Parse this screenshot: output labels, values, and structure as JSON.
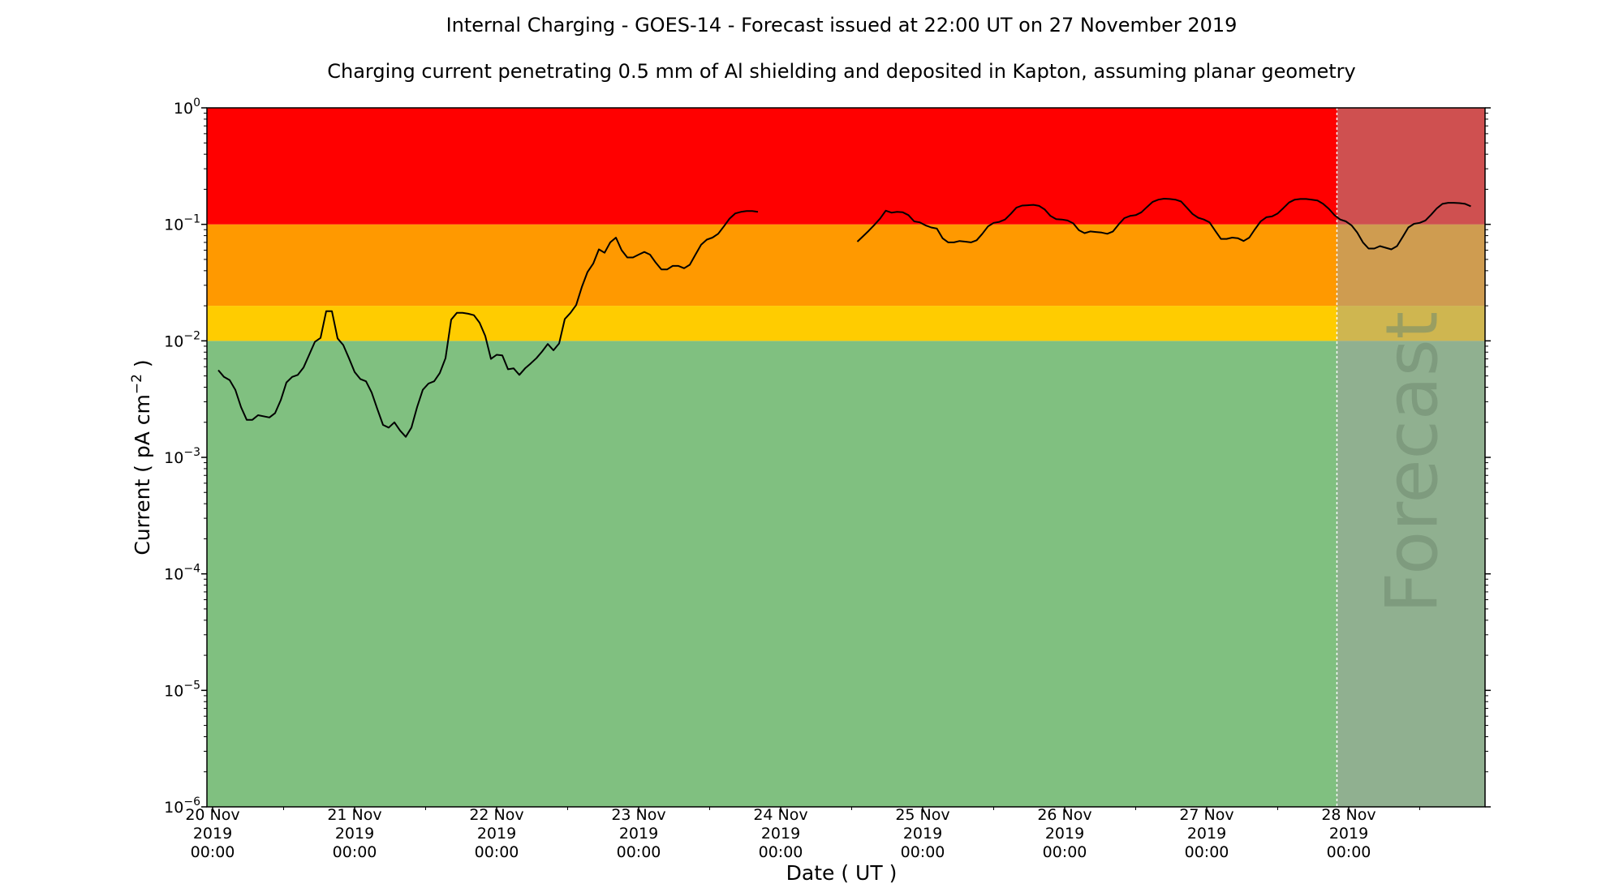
{
  "chart_data": {
    "type": "line",
    "title": "Internal Charging - GOES-14 - Forecast issued at 22:00 UT on 27 November 2019",
    "subtitle": "Charging current penetrating 0.5 mm of Al shielding and deposited in Kapton, assuming planar geometry",
    "xlabel": "Date ( UT )",
    "ylabel_main": "Current ( pA cm",
    "ylabel_sup": "−2",
    "ylabel_end": " )",
    "yscale": "log",
    "ylim": [
      1e-06,
      1
    ],
    "xlim_days": [
      19.96,
      28.96
    ],
    "x_ticks": [
      {
        "day": 20,
        "line1": "20 Nov",
        "line2": "2019",
        "line3": "00:00"
      },
      {
        "day": 21,
        "line1": "21 Nov",
        "line2": "2019",
        "line3": "00:00"
      },
      {
        "day": 22,
        "line1": "22 Nov",
        "line2": "2019",
        "line3": "00:00"
      },
      {
        "day": 23,
        "line1": "23 Nov",
        "line2": "2019",
        "line3": "00:00"
      },
      {
        "day": 24,
        "line1": "24 Nov",
        "line2": "2019",
        "line3": "00:00"
      },
      {
        "day": 25,
        "line1": "25 Nov",
        "line2": "2019",
        "line3": "00:00"
      },
      {
        "day": 26,
        "line1": "26 Nov",
        "line2": "2019",
        "line3": "00:00"
      },
      {
        "day": 27,
        "line1": "27 Nov",
        "line2": "2019",
        "line3": "00:00"
      },
      {
        "day": 28,
        "line1": "28 Nov",
        "line2": "2019",
        "line3": "00:00"
      }
    ],
    "y_ticks": [
      {
        "value": 1e-06,
        "base": "10",
        "exp": "−6"
      },
      {
        "value": 1e-05,
        "base": "10",
        "exp": "−5"
      },
      {
        "value": 0.0001,
        "base": "10",
        "exp": "−4"
      },
      {
        "value": 0.001,
        "base": "10",
        "exp": "−3"
      },
      {
        "value": 0.01,
        "base": "10",
        "exp": "−2"
      },
      {
        "value": 0.1,
        "base": "10",
        "exp": "−1"
      },
      {
        "value": 1,
        "base": "10",
        "exp": "0"
      }
    ],
    "bands": [
      {
        "from": 1e-06,
        "to": 0.01,
        "color": "#80c080"
      },
      {
        "from": 0.01,
        "to": 0.02,
        "color": "#ffcc00"
      },
      {
        "from": 0.02,
        "to": 0.1,
        "color": "#ff9900"
      },
      {
        "from": 0.1,
        "to": 1,
        "color": "#ff0000"
      }
    ],
    "forecast": {
      "start_day": 27.917,
      "label": "Forecast",
      "overlay_color": "#a0a0a0"
    },
    "series": [
      {
        "color": "#000000",
        "segments": [
          [
            [
              20.04,
              0.0056
            ],
            [
              20.08,
              0.0049
            ],
            [
              20.12,
              0.0046
            ],
            [
              20.16,
              0.0038
            ],
            [
              20.2,
              0.0027
            ],
            [
              20.24,
              0.0021
            ],
            [
              20.28,
              0.0021
            ],
            [
              20.32,
              0.0023
            ],
            [
              20.4,
              0.0022
            ],
            [
              20.44,
              0.0024
            ],
            [
              20.48,
              0.0031
            ],
            [
              20.52,
              0.0044
            ],
            [
              20.56,
              0.0049
            ],
            [
              20.6,
              0.0051
            ],
            [
              20.64,
              0.0059
            ],
            [
              20.68,
              0.0076
            ],
            [
              20.72,
              0.0098
            ],
            [
              20.76,
              0.0106
            ],
            [
              20.8,
              0.018
            ],
            [
              20.84,
              0.018
            ],
            [
              20.88,
              0.0105
            ],
            [
              20.92,
              0.0092
            ],
            [
              20.96,
              0.0071
            ],
            [
              21.0,
              0.0054
            ],
            [
              21.04,
              0.0047
            ],
            [
              21.08,
              0.0045
            ],
            [
              21.12,
              0.0036
            ],
            [
              21.16,
              0.0026
            ],
            [
              21.2,
              0.0019
            ],
            [
              21.24,
              0.0018
            ],
            [
              21.28,
              0.002
            ],
            [
              21.32,
              0.0017
            ],
            [
              21.36,
              0.0015
            ],
            [
              21.4,
              0.0018
            ],
            [
              21.44,
              0.0027
            ],
            [
              21.48,
              0.0038
            ],
            [
              21.52,
              0.0043
            ],
            [
              21.56,
              0.0045
            ],
            [
              21.6,
              0.0053
            ],
            [
              21.64,
              0.0071
            ],
            [
              21.68,
              0.0152
            ],
            [
              21.72,
              0.0174
            ],
            [
              21.76,
              0.0174
            ],
            [
              21.8,
              0.0171
            ],
            [
              21.84,
              0.0166
            ],
            [
              21.88,
              0.0143
            ],
            [
              21.92,
              0.011
            ],
            [
              21.96,
              0.007
            ],
            [
              22.0,
              0.0076
            ],
            [
              22.04,
              0.0075
            ],
            [
              22.08,
              0.0057
            ],
            [
              22.12,
              0.0058
            ],
            [
              22.16,
              0.0051
            ],
            [
              22.2,
              0.0058
            ],
            [
              22.24,
              0.0064
            ],
            [
              22.28,
              0.0071
            ],
            [
              22.32,
              0.0081
            ],
            [
              22.36,
              0.0094
            ],
            [
              22.4,
              0.0083
            ],
            [
              22.44,
              0.0095
            ],
            [
              22.48,
              0.0154
            ],
            [
              22.52,
              0.0174
            ],
            [
              22.56,
              0.0203
            ],
            [
              22.6,
              0.029
            ],
            [
              22.64,
              0.039
            ],
            [
              22.68,
              0.046
            ],
            [
              22.72,
              0.061
            ],
            [
              22.76,
              0.057
            ],
            [
              22.8,
              0.07
            ],
            [
              22.84,
              0.077
            ],
            [
              22.88,
              0.06
            ],
            [
              22.92,
              0.052
            ],
            [
              22.96,
              0.052
            ],
            [
              23.0,
              0.055
            ],
            [
              23.04,
              0.058
            ],
            [
              23.08,
              0.055
            ],
            [
              23.12,
              0.047
            ],
            [
              23.16,
              0.041
            ],
            [
              23.2,
              0.041
            ],
            [
              23.24,
              0.044
            ],
            [
              23.28,
              0.044
            ],
            [
              23.32,
              0.042
            ],
            [
              23.36,
              0.045
            ],
            [
              23.4,
              0.055
            ],
            [
              23.44,
              0.067
            ],
            [
              23.48,
              0.074
            ],
            [
              23.52,
              0.077
            ],
            [
              23.56,
              0.083
            ],
            [
              23.6,
              0.096
            ],
            [
              23.64,
              0.112
            ],
            [
              23.68,
              0.124
            ],
            [
              23.72,
              0.128
            ],
            [
              23.76,
              0.13
            ],
            [
              23.8,
              0.13
            ],
            [
              23.84,
              0.128
            ]
          ],
          [
            [
              24.54,
              0.071
            ],
            [
              24.58,
              0.079
            ],
            [
              24.62,
              0.088
            ],
            [
              24.66,
              0.099
            ],
            [
              24.7,
              0.112
            ],
            [
              24.74,
              0.131
            ],
            [
              24.78,
              0.126
            ],
            [
              24.82,
              0.128
            ],
            [
              24.86,
              0.127
            ],
            [
              24.9,
              0.12
            ],
            [
              24.94,
              0.106
            ],
            [
              24.98,
              0.104
            ],
            [
              25.02,
              0.098
            ],
            [
              25.06,
              0.094
            ],
            [
              25.1,
              0.092
            ],
            [
              25.14,
              0.076
            ],
            [
              25.18,
              0.07
            ],
            [
              25.22,
              0.07
            ],
            [
              25.26,
              0.072
            ],
            [
              25.3,
              0.071
            ],
            [
              25.34,
              0.07
            ],
            [
              25.38,
              0.073
            ],
            [
              25.42,
              0.083
            ],
            [
              25.46,
              0.096
            ],
            [
              25.5,
              0.103
            ],
            [
              25.54,
              0.105
            ],
            [
              25.58,
              0.11
            ],
            [
              25.62,
              0.123
            ],
            [
              25.66,
              0.139
            ],
            [
              25.7,
              0.145
            ],
            [
              25.74,
              0.146
            ],
            [
              25.78,
              0.147
            ],
            [
              25.82,
              0.144
            ],
            [
              25.86,
              0.134
            ],
            [
              25.9,
              0.118
            ],
            [
              25.94,
              0.111
            ],
            [
              25.98,
              0.11
            ],
            [
              26.02,
              0.108
            ],
            [
              26.06,
              0.102
            ],
            [
              26.1,
              0.089
            ],
            [
              26.14,
              0.084
            ],
            [
              26.18,
              0.087
            ],
            [
              26.22,
              0.086
            ],
            [
              26.26,
              0.085
            ],
            [
              26.3,
              0.083
            ],
            [
              26.34,
              0.087
            ],
            [
              26.38,
              0.1
            ],
            [
              26.42,
              0.113
            ],
            [
              26.46,
              0.118
            ],
            [
              26.5,
              0.12
            ],
            [
              26.54,
              0.127
            ],
            [
              26.58,
              0.141
            ],
            [
              26.62,
              0.156
            ],
            [
              26.66,
              0.163
            ],
            [
              26.7,
              0.166
            ],
            [
              26.74,
              0.165
            ],
            [
              26.78,
              0.163
            ],
            [
              26.82,
              0.157
            ],
            [
              26.86,
              0.139
            ],
            [
              26.9,
              0.123
            ],
            [
              26.94,
              0.114
            ],
            [
              26.98,
              0.11
            ],
            [
              27.02,
              0.104
            ],
            [
              27.06,
              0.088
            ],
            [
              27.1,
              0.075
            ],
            [
              27.14,
              0.075
            ],
            [
              27.18,
              0.077
            ],
            [
              27.22,
              0.076
            ],
            [
              27.26,
              0.072
            ],
            [
              27.3,
              0.077
            ],
            [
              27.34,
              0.091
            ],
            [
              27.38,
              0.106
            ],
            [
              27.42,
              0.115
            ],
            [
              27.46,
              0.117
            ],
            [
              27.5,
              0.124
            ],
            [
              27.54,
              0.138
            ],
            [
              27.58,
              0.154
            ],
            [
              27.62,
              0.163
            ],
            [
              27.66,
              0.165
            ],
            [
              27.7,
              0.165
            ],
            [
              27.74,
              0.163
            ],
            [
              27.78,
              0.16
            ],
            [
              27.82,
              0.15
            ],
            [
              27.86,
              0.136
            ],
            [
              27.9,
              0.12
            ],
            [
              27.94,
              0.11
            ],
            [
              27.98,
              0.106
            ],
            [
              28.02,
              0.098
            ],
            [
              28.06,
              0.085
            ],
            [
              28.1,
              0.07
            ],
            [
              28.14,
              0.062
            ],
            [
              28.18,
              0.062
            ],
            [
              28.22,
              0.065
            ],
            [
              28.26,
              0.063
            ],
            [
              28.3,
              0.061
            ],
            [
              28.34,
              0.065
            ],
            [
              28.38,
              0.078
            ],
            [
              28.42,
              0.094
            ],
            [
              28.46,
              0.101
            ],
            [
              28.5,
              0.103
            ],
            [
              28.54,
              0.108
            ],
            [
              28.58,
              0.121
            ],
            [
              28.62,
              0.137
            ],
            [
              28.66,
              0.15
            ],
            [
              28.7,
              0.153
            ],
            [
              28.74,
              0.153
            ],
            [
              28.78,
              0.152
            ],
            [
              28.82,
              0.15
            ],
            [
              28.86,
              0.143
            ]
          ]
        ]
      }
    ]
  }
}
